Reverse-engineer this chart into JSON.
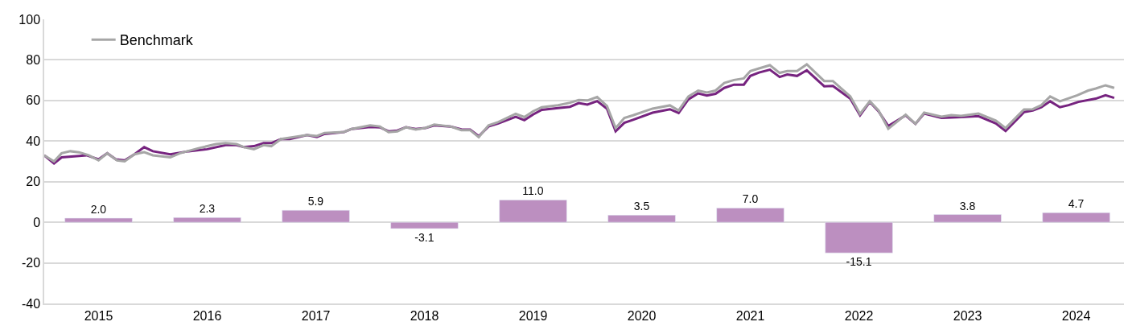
{
  "chart_data": {
    "type": "line",
    "xlim": [
      2015,
      2024.94
    ],
    "xticks": [
      {
        "value": 2015.5,
        "label": "2015"
      },
      {
        "value": 2016.5,
        "label": "2016"
      },
      {
        "value": 2017.5,
        "label": "2017"
      },
      {
        "value": 2018.5,
        "label": "2018"
      },
      {
        "value": 2019.5,
        "label": "2019"
      },
      {
        "value": 2020.5,
        "label": "2020"
      },
      {
        "value": 2021.5,
        "label": "2021"
      },
      {
        "value": 2022.5,
        "label": "2022"
      },
      {
        "value": 2023.5,
        "label": "2023"
      },
      {
        "value": 2024.5,
        "label": "2024"
      }
    ],
    "ylim": [
      -40,
      100
    ],
    "yticks": [
      -40,
      -20,
      0,
      20,
      40,
      60,
      80,
      100
    ],
    "grid": "y",
    "legend": "top left",
    "marker": "none",
    "line_style": "solid",
    "series": [
      {
        "type": "bar",
        "color": "#bc8fc0",
        "x": [
          2015.5,
          2016.5,
          2017.5,
          2018.5,
          2019.5,
          2020.5,
          2021.5,
          2022.5,
          2023.5,
          2024.5
        ],
        "values": [
          2.0,
          2.3,
          5.9,
          -3.1,
          11.0,
          3.5,
          7.0,
          -15.1,
          3.8,
          4.7
        ],
        "value_labels": [
          "2.0",
          "2.3",
          "5.9",
          "-3.1",
          "11.0",
          "3.5",
          "7.0",
          "-15.1",
          "3.8",
          "4.7"
        ]
      },
      {
        "color": "#76237f",
        "x": [
          2015.0,
          2015.09,
          2015.16,
          2015.39,
          2015.5,
          2015.58,
          2015.66,
          2015.74,
          2015.83,
          2015.92,
          2016.0,
          2016.16,
          2016.33,
          2016.5,
          2016.67,
          2016.77,
          2016.84,
          2016.93,
          2017.02,
          2017.09,
          2017.18,
          2017.26,
          2017.42,
          2017.51,
          2017.58,
          2017.76,
          2017.83,
          2018.0,
          2018.09,
          2018.17,
          2018.25,
          2018.33,
          2018.42,
          2018.51,
          2018.59,
          2018.74,
          2018.84,
          2018.92,
          2019.0,
          2019.09,
          2019.18,
          2019.34,
          2019.42,
          2019.5,
          2019.58,
          2019.73,
          2019.84,
          2019.92,
          2020.0,
          2020.09,
          2020.18,
          2020.26,
          2020.34,
          2020.42,
          2020.6,
          2020.76,
          2020.84,
          2020.93,
          2021.02,
          2021.1,
          2021.18,
          2021.26,
          2021.35,
          2021.44,
          2021.5,
          2021.58,
          2021.68,
          2021.77,
          2021.84,
          2021.93,
          2022.02,
          2022.18,
          2022.26,
          2022.42,
          2022.51,
          2022.6,
          2022.68,
          2022.77,
          2022.93,
          2023.02,
          2023.1,
          2023.26,
          2023.44,
          2023.6,
          2023.76,
          2023.85,
          2024.02,
          2024.1,
          2024.18,
          2024.26,
          2024.35,
          2024.43,
          2024.52,
          2024.68,
          2024.77,
          2024.85
        ],
        "values": [
          33,
          29,
          32,
          33,
          31,
          34,
          31,
          30.5,
          33.5,
          37,
          35,
          33.5,
          35,
          36,
          38,
          38,
          37,
          37.5,
          39,
          39,
          41,
          41,
          43,
          42,
          43.5,
          44.5,
          46,
          47,
          46.8,
          44.8,
          45.2,
          46.8,
          46,
          46.5,
          47.7,
          47.2,
          45.8,
          45.7,
          42.4,
          47.2,
          48.7,
          52,
          50.3,
          53.1,
          55.4,
          56.3,
          56.9,
          58.7,
          58,
          59.7,
          56,
          44.8,
          49,
          50.5,
          54,
          55.7,
          53.8,
          60.6,
          63.5,
          62.4,
          63.3,
          66.2,
          67.8,
          67.8,
          72.1,
          73.8,
          75.2,
          71.6,
          72.8,
          72.1,
          74.9,
          67,
          67.2,
          60.9,
          52.7,
          59.3,
          54.7,
          47.4,
          52.7,
          48.5,
          53.6,
          51.4,
          51.8,
          52.3,
          48.7,
          45,
          54.3,
          55.1,
          56.7,
          59.6,
          56.7,
          57.7,
          59.3,
          60.9,
          62.6,
          61.3
        ]
      },
      {
        "name": "Benchmark",
        "color": "#a6a6a6",
        "x": [
          2015.0,
          2015.09,
          2015.16,
          2015.24,
          2015.32,
          2015.41,
          2015.5,
          2015.58,
          2015.67,
          2015.74,
          2015.83,
          2015.92,
          2016.0,
          2016.16,
          2016.25,
          2016.42,
          2016.58,
          2016.67,
          2016.77,
          2016.84,
          2016.93,
          2017.02,
          2017.09,
          2017.18,
          2017.42,
          2017.51,
          2017.58,
          2017.76,
          2017.83,
          2018.0,
          2018.09,
          2018.17,
          2018.25,
          2018.33,
          2018.42,
          2018.51,
          2018.59,
          2018.74,
          2018.84,
          2018.92,
          2019.0,
          2019.09,
          2019.18,
          2019.34,
          2019.42,
          2019.5,
          2019.58,
          2019.73,
          2019.84,
          2019.92,
          2020.0,
          2020.09,
          2020.18,
          2020.26,
          2020.34,
          2020.42,
          2020.6,
          2020.76,
          2020.84,
          2020.93,
          2021.02,
          2021.1,
          2021.18,
          2021.26,
          2021.35,
          2021.44,
          2021.5,
          2021.58,
          2021.68,
          2021.77,
          2021.84,
          2021.93,
          2022.02,
          2022.18,
          2022.26,
          2022.42,
          2022.51,
          2022.6,
          2022.68,
          2022.77,
          2022.93,
          2023.02,
          2023.1,
          2023.26,
          2023.35,
          2023.44,
          2023.6,
          2023.76,
          2023.85,
          2024.02,
          2024.1,
          2024.18,
          2024.26,
          2024.35,
          2024.51,
          2024.61,
          2024.68,
          2024.77,
          2024.85
        ],
        "values": [
          33,
          30,
          34,
          35,
          34.5,
          33,
          30.5,
          34,
          30.5,
          30,
          33.5,
          34.5,
          33,
          32,
          34,
          36.5,
          38.5,
          39,
          38.5,
          37,
          36,
          38,
          37.5,
          41,
          43,
          42.5,
          44,
          44.5,
          46,
          47.7,
          47.2,
          44.4,
          44.8,
          46.8,
          45.7,
          46.5,
          48.1,
          47.2,
          45.4,
          45.4,
          41.9,
          47.7,
          49.4,
          53.4,
          51.8,
          54.7,
          56.7,
          57.7,
          58.9,
          60.2,
          60,
          61.7,
          57.3,
          46.4,
          51.4,
          52.7,
          56,
          57.6,
          55.1,
          62,
          64.9,
          63.9,
          64.9,
          68.6,
          70.1,
          70.9,
          74.5,
          75.8,
          77.4,
          73.6,
          74.5,
          74.5,
          77.8,
          69.6,
          69.6,
          62,
          53.4,
          59.6,
          55.1,
          46.1,
          53,
          48.5,
          54,
          52,
          52.8,
          52.4,
          53.6,
          50.1,
          46.4,
          55.6,
          55.7,
          57.7,
          62,
          59.6,
          62.6,
          64.9,
          65.9,
          67.5,
          66.2
        ]
      }
    ]
  }
}
